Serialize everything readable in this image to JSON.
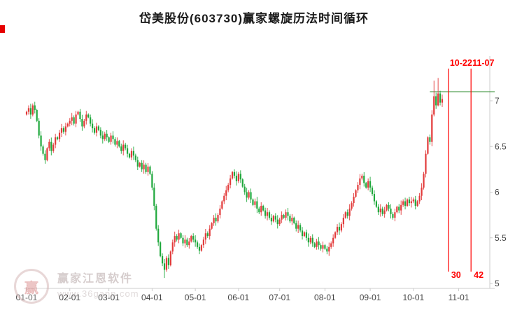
{
  "header": {
    "title": "岱美股份(603730)赢家螺旋历法时间循环"
  },
  "watermark": {
    "logo_glyph": "赢",
    "line1": "赢家江恩软件",
    "line2": "www.36gann.com"
  },
  "chart_data": {
    "type": "candlestick",
    "title": "岱美股份(603730)赢家螺旋历法时间循环",
    "x_tick_labels": [
      "01-01",
      "02-01",
      "03-01",
      "04-01",
      "05-01",
      "06-01",
      "07-01",
      "08-01",
      "09-01",
      "10-01",
      "11-01"
    ],
    "x_tick_day_index": [
      0,
      21,
      40,
      61,
      82,
      103,
      123,
      145,
      167,
      188,
      210
    ],
    "y_ticks": [
      "7",
      "6.5",
      "6",
      "5.5",
      "5"
    ],
    "y_tick_values": [
      7,
      6.5,
      6,
      5.5,
      5
    ],
    "y_axis": {
      "min": 4.95,
      "max": 7.49
    },
    "grid": "off",
    "legend": "none",
    "open_first": 6.85,
    "closes": [
      6.88,
      6.92,
      6.85,
      6.95,
      6.9,
      6.78,
      6.62,
      6.5,
      6.42,
      6.35,
      6.48,
      6.55,
      6.45,
      6.52,
      6.6,
      6.58,
      6.65,
      6.7,
      6.66,
      6.72,
      6.75,
      6.78,
      6.82,
      6.75,
      6.85,
      6.88,
      6.8,
      6.72,
      6.78,
      6.85,
      6.82,
      6.75,
      6.7,
      6.65,
      6.72,
      6.68,
      6.62,
      6.58,
      6.64,
      6.6,
      6.55,
      6.62,
      6.58,
      6.52,
      6.56,
      6.5,
      6.45,
      6.52,
      6.48,
      6.42,
      6.38,
      6.45,
      6.4,
      6.35,
      6.28,
      6.32,
      6.25,
      6.3,
      6.22,
      6.28,
      6.2,
      6.05,
      5.85,
      5.6,
      5.45,
      5.3,
      5.22,
      5.15,
      5.28,
      5.2,
      5.35,
      5.45,
      5.52,
      5.48,
      5.55,
      5.5,
      5.44,
      5.48,
      5.42,
      5.46,
      5.52,
      5.48,
      5.45,
      5.4,
      5.36,
      5.42,
      5.48,
      5.55,
      5.52,
      5.6,
      5.66,
      5.72,
      5.68,
      5.75,
      5.82,
      5.9,
      5.96,
      6.02,
      6.08,
      6.15,
      6.22,
      6.18,
      6.12,
      6.2,
      6.14,
      6.06,
      6.0,
      5.94,
      6.0,
      5.92,
      5.86,
      5.9,
      5.82,
      5.78,
      5.85,
      5.8,
      5.74,
      5.78,
      5.72,
      5.68,
      5.74,
      5.7,
      5.65,
      5.7,
      5.75,
      5.72,
      5.78,
      5.74,
      5.68,
      5.72,
      5.66,
      5.6,
      5.64,
      5.58,
      5.52,
      5.56,
      5.5,
      5.45,
      5.5,
      5.44,
      5.4,
      5.46,
      5.42,
      5.38,
      5.42,
      5.38,
      5.35,
      5.4,
      5.44,
      5.5,
      5.56,
      5.62,
      5.58,
      5.65,
      5.72,
      5.78,
      5.74,
      5.82,
      5.88,
      5.95,
      6.02,
      6.08,
      6.15,
      6.18,
      6.1,
      6.05,
      6.12,
      6.05,
      5.98,
      5.9,
      5.84,
      5.78,
      5.82,
      5.76,
      5.8,
      5.86,
      5.82,
      5.76,
      5.72,
      5.78,
      5.84,
      5.8,
      5.86,
      5.9,
      5.85,
      5.92,
      5.88,
      5.9,
      5.92,
      5.85,
      5.9,
      5.96,
      6.05,
      6.2,
      6.42,
      6.6,
      6.55,
      6.85,
      7.05,
      6.95,
      7.08,
      6.98,
      7.02
    ],
    "wick_overrides": {
      "67": {
        "low": 5.06
      },
      "198": {
        "high": 7.22
      },
      "200": {
        "high": 7.25
      }
    },
    "annotations": {
      "vlines": [
        {
          "day_index": 205,
          "top_label": "10-22",
          "bottom_label": "30"
        },
        {
          "day_index": 216,
          "top_label": "11-07",
          "bottom_label": "42"
        }
      ],
      "hline": {
        "price": 7.1,
        "from_day_index": 196
      }
    },
    "colors": {
      "up": "#e23a3a",
      "down": "#1fa83c",
      "annotation": "#ff0000",
      "hline": "#2e8b2e",
      "axis": "#cccccc",
      "tick_text": "#444444"
    }
  }
}
